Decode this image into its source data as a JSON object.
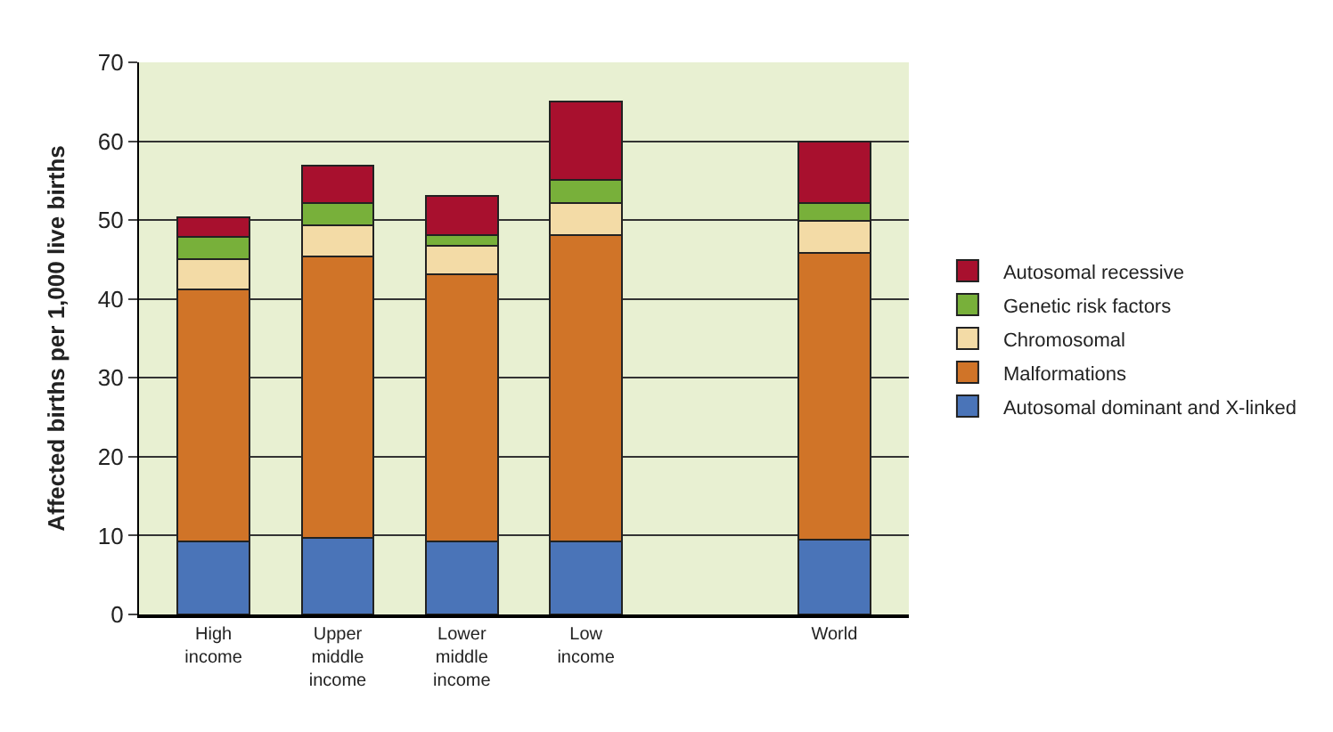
{
  "chart_data": {
    "type": "bar",
    "stacked": true,
    "ylabel": "Affected births per 1,000 live births",
    "categories": [
      "High income",
      "Upper middle income",
      "Lower middle income",
      "Low income",
      null,
      "World"
    ],
    "series": [
      {
        "name": "Autosomal dominant and X-linked",
        "color": "#4a74b8",
        "values": [
          9.3,
          9.7,
          9.3,
          9.3,
          null,
          9.5
        ]
      },
      {
        "name": "Malformations",
        "color": "#d07428",
        "values": [
          31.9,
          35.7,
          33.8,
          38.8,
          null,
          36.3
        ]
      },
      {
        "name": "Chromosomal",
        "color": "#f3dba6",
        "values": [
          3.9,
          3.9,
          3.6,
          4.1,
          null,
          4.1
        ]
      },
      {
        "name": "Genetic risk factors",
        "color": "#78b03a",
        "values": [
          2.8,
          2.9,
          1.4,
          2.9,
          null,
          2.3
        ]
      },
      {
        "name": "Autosomal recessive",
        "color": "#a8102e",
        "values": [
          2.5,
          4.7,
          5.0,
          9.9,
          null,
          7.8
        ]
      }
    ],
    "ylim": [
      0,
      70
    ],
    "yticks": [
      0,
      10,
      20,
      30,
      40,
      50,
      60,
      70
    ],
    "grid": "y",
    "legend": "right"
  }
}
